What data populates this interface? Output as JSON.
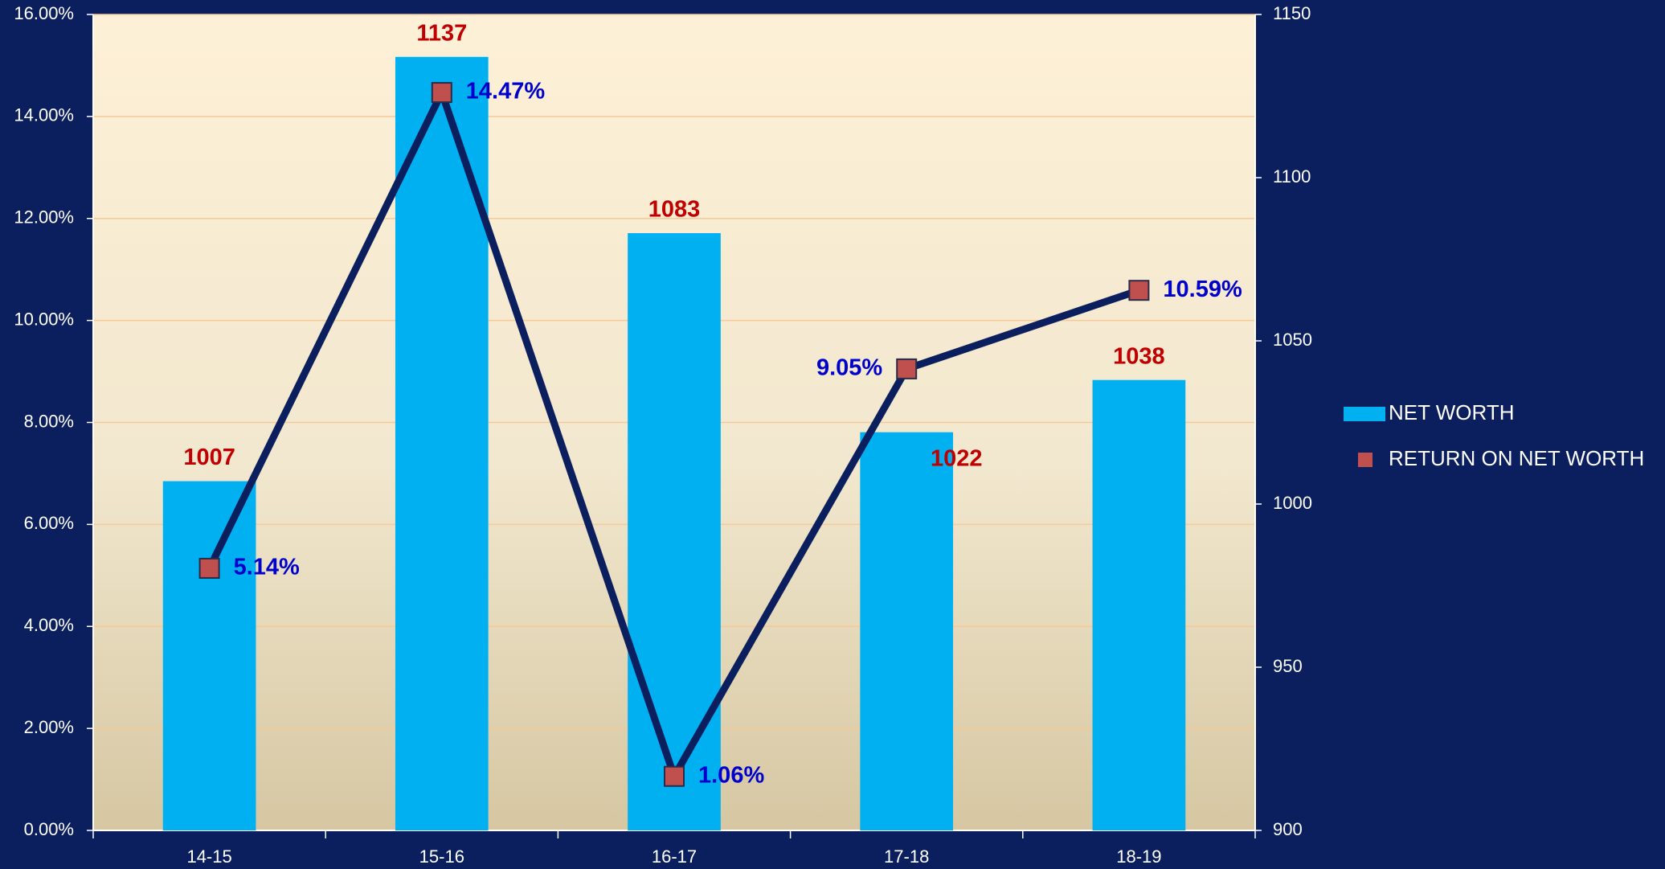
{
  "chart_data": {
    "type": "combo",
    "categories": [
      "14-15",
      "15-16",
      "16-17",
      "17-18",
      "18-19"
    ],
    "series": [
      {
        "name": "NET WORTH",
        "type": "bar",
        "axis": "y2",
        "color": "#00b0f0",
        "values": [
          1007,
          1137,
          1083,
          1022,
          1038
        ]
      },
      {
        "name": "RETURN ON NET WORTH",
        "type": "line",
        "axis": "y",
        "color": "#c0504d",
        "line_color": "#0b1f5e",
        "values": [
          5.14,
          14.47,
          1.06,
          9.05,
          10.59
        ],
        "value_labels": [
          "5.14%",
          "14.47%",
          "1.06%",
          "9.05%",
          "10.59%"
        ]
      }
    ],
    "ylim": [
      0,
      16
    ],
    "yticks": [
      {
        "value": 0,
        "label": "0.00%"
      },
      {
        "value": 2,
        "label": "2.00%"
      },
      {
        "value": 4,
        "label": "4.00%"
      },
      {
        "value": 6,
        "label": "6.00%"
      },
      {
        "value": 8,
        "label": "8.00%"
      },
      {
        "value": 10,
        "label": "10.00%"
      },
      {
        "value": 12,
        "label": "12.00%"
      },
      {
        "value": 14,
        "label": "14.00%"
      },
      {
        "value": 16,
        "label": "16.00%"
      }
    ],
    "y2lim": [
      900,
      1150
    ],
    "y2ticks": [
      900,
      950,
      1000,
      1050,
      1100,
      1150
    ],
    "grid": true,
    "legend": "right"
  }
}
